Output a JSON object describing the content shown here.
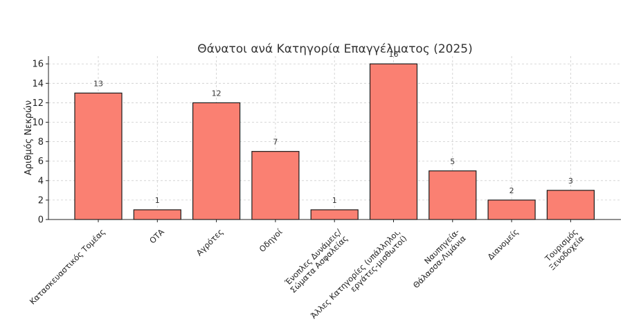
{
  "chart_data": {
    "type": "bar",
    "title": "Θάνατοι ανά Κατηγορία Επαγγέλματος (2025)",
    "xlabel": "",
    "ylabel": "Αριθμός Νεκρών",
    "ylim": [
      0,
      16.8
    ],
    "yticks": [
      0,
      2,
      4,
      6,
      8,
      10,
      12,
      14,
      16
    ],
    "grid": true,
    "bar_color": "#fa8072",
    "categories": [
      "Κατασκευαστικός Τομέας",
      "ΟΤΑ",
      "Αγρότες",
      "Οδηγοί",
      "Ένοπλες Δυνάμεις/\nΣώματα Ασφαλείας",
      "Άλλες Κατηγορίες (υπάλληλοι,\nεργάτες-μισθωτοί)",
      "Ναυπηγεία-\nΘάλασσα-Λιμάνια",
      "Διανομείς",
      "Τουρισμός\nΞενοδοχεία"
    ],
    "values": [
      13,
      1,
      12,
      7,
      1,
      16,
      5,
      2,
      3
    ]
  }
}
